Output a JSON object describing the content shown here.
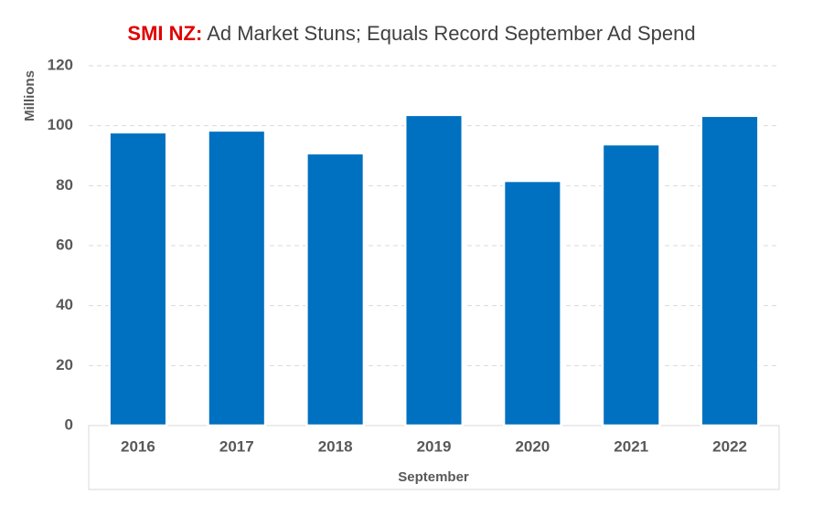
{
  "chart_data": {
    "type": "bar",
    "title_prefix": "SMI NZ:",
    "title": "Ad Market Stuns; Equals Record September Ad Spend",
    "y_label": "Millions",
    "x_label": "September",
    "categories": [
      "2016",
      "2017",
      "2018",
      "2019",
      "2020",
      "2021",
      "2022"
    ],
    "values": [
      97.8,
      98.4,
      90.8,
      103.6,
      81.6,
      93.8,
      103.3
    ],
    "color": "#0070c0",
    "ylim": [
      0,
      120
    ],
    "yticks": [
      0,
      20,
      40,
      60,
      80,
      100,
      120
    ],
    "grid": true
  }
}
